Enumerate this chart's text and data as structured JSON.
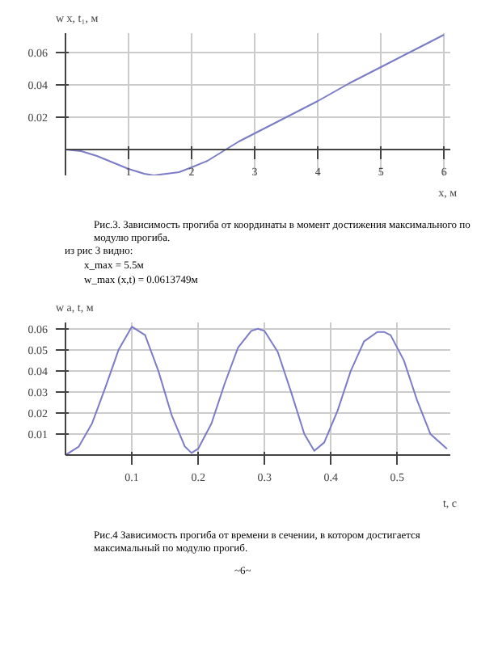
{
  "chart_data": [
    {
      "type": "line",
      "xlabel": "x, м",
      "ylabel": "w x, t₁, м",
      "xlim": [
        0,
        6.1
      ],
      "ylim": [
        -0.016,
        0.072
      ],
      "xticks": [
        1,
        2,
        3,
        4,
        5,
        6
      ],
      "yticks": [
        0.02,
        0.04,
        0.06
      ],
      "grid": true,
      "marker": "none",
      "line_style": "solid",
      "series": [
        {
          "color": "#7b7bc8",
          "x": [
            0,
            0.25,
            0.5,
            0.75,
            1,
            1.25,
            1.4,
            1.6,
            1.8,
            2,
            2.25,
            2.5,
            2.75,
            3,
            3.5,
            4,
            4.5,
            5,
            5.5,
            6
          ],
          "values": [
            0,
            -0.001,
            -0.004,
            -0.008,
            -0.012,
            -0.015,
            -0.016,
            -0.015,
            -0.014,
            -0.011,
            -0.007,
            -0.001,
            0.005,
            0.01,
            0.02,
            0.03,
            0.041,
            0.051,
            0.061,
            0.071
          ]
        }
      ],
      "annotations": [
        "Рис.3. Зависимость прогиба от координаты в момент достижения максимального по модулю прогиба.",
        "из рис 3 видно:",
        "x_max = 5.5м",
        "w_max (x,t) = 0.0613749м"
      ]
    },
    {
      "type": "line",
      "xlabel": "t, с",
      "ylabel": "w a, t, м",
      "xlim": [
        0,
        0.58
      ],
      "ylim": [
        0,
        0.063
      ],
      "xticks": [
        0.1,
        0.2,
        0.3,
        0.4,
        0.5
      ],
      "yticks": [
        0.01,
        0.02,
        0.03,
        0.04,
        0.05,
        0.06
      ],
      "grid": true,
      "marker": "none",
      "line_style": "solid",
      "series": [
        {
          "color": "#7b7bc8",
          "x": [
            0,
            0.02,
            0.04,
            0.06,
            0.08,
            0.1,
            0.12,
            0.14,
            0.16,
            0.18,
            0.19,
            0.2,
            0.22,
            0.24,
            0.26,
            0.28,
            0.29,
            0.3,
            0.32,
            0.34,
            0.36,
            0.375,
            0.39,
            0.41,
            0.43,
            0.45,
            0.47,
            0.48,
            0.49,
            0.51,
            0.53,
            0.55,
            0.575
          ],
          "values": [
            0,
            0.004,
            0.015,
            0.032,
            0.05,
            0.061,
            0.057,
            0.04,
            0.019,
            0.004,
            0.001,
            0.003,
            0.015,
            0.034,
            0.051,
            0.059,
            0.06,
            0.059,
            0.049,
            0.03,
            0.01,
            0.002,
            0.006,
            0.021,
            0.04,
            0.054,
            0.0585,
            0.0585,
            0.057,
            0.045,
            0.026,
            0.01,
            0.003
          ]
        }
      ],
      "annotations": [
        "Рис.4 Зависимость прогиба от времени в сечении, в котором достигается максимальный по модулю прогиб.",
        "~6~"
      ]
    }
  ]
}
